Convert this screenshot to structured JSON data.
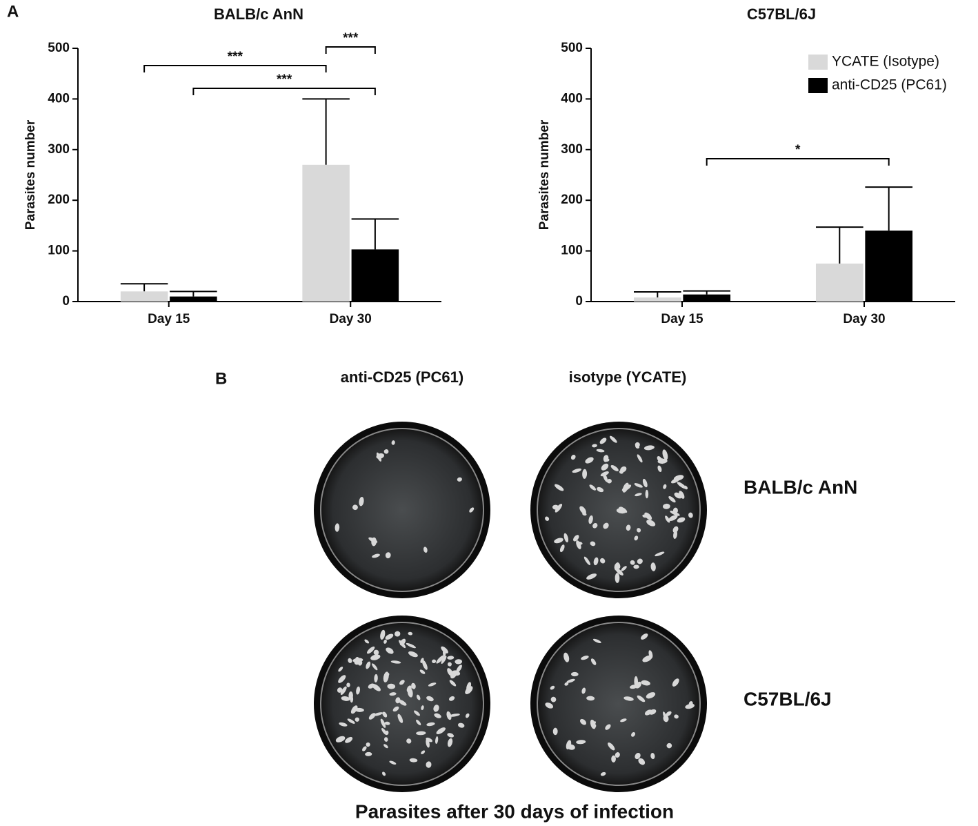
{
  "panel_labels": [
    "A",
    "B"
  ],
  "chart_data": [
    {
      "type": "bar",
      "title": "BALB/c AnN",
      "ylabel": "Parasites number",
      "categories": [
        "Day 15",
        "Day 30"
      ],
      "series": [
        {
          "color": "#d9d9d9",
          "values": [
            20,
            270
          ],
          "errors": [
            15,
            130
          ]
        },
        {
          "color": "#000000",
          "values": [
            10,
            103
          ],
          "errors": [
            10,
            60
          ]
        }
      ],
      "ylim": [
        0,
        500
      ],
      "yticks": [
        0,
        100,
        200,
        300,
        400,
        500
      ],
      "annotations": [
        "***",
        "***",
        "***"
      ]
    },
    {
      "type": "bar",
      "title": "C57BL/6J",
      "ylabel": "Parasites number",
      "categories": [
        "Day 15",
        "Day 30"
      ],
      "series": [
        {
          "name": "YCATE (Isotype)",
          "color": "#d9d9d9",
          "values": [
            8,
            75
          ],
          "errors": [
            11,
            72
          ]
        },
        {
          "name": "anti-CD25 (PC61)",
          "color": "#000000",
          "values": [
            14,
            140
          ],
          "errors": [
            7,
            86
          ]
        }
      ],
      "ylim": [
        0,
        500
      ],
      "yticks": [
        0,
        100,
        200,
        300,
        400,
        500
      ],
      "legend": "upper right",
      "annotations": [
        "*"
      ]
    }
  ],
  "photos": {
    "title": "Parasites after 30 days of infection",
    "columns": [
      "anti-CD25 (PC61)",
      "isotype (YCATE)"
    ],
    "rows": [
      "BALB/c AnN",
      "C57BL/6J"
    ]
  }
}
